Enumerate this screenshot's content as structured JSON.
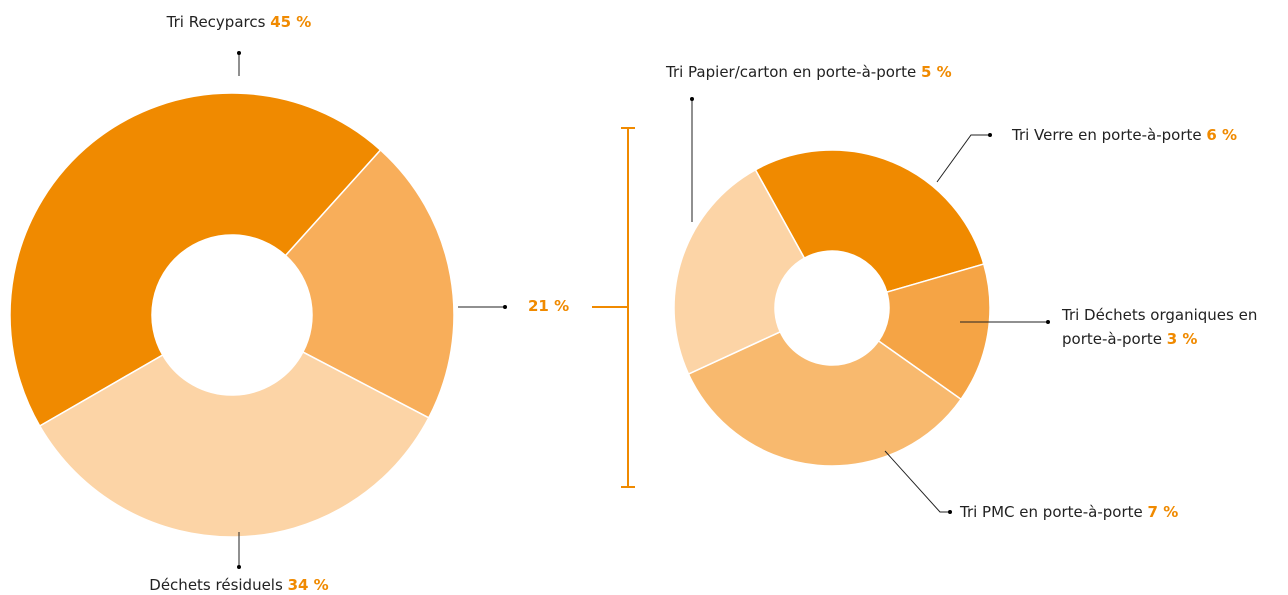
{
  "chart_data": [
    {
      "type": "donut",
      "categories": [
        "Tri Recyparcs",
        null,
        "Déchets résiduels"
      ],
      "values": [
        45,
        21,
        34
      ],
      "value_labels": [
        "45 %",
        "21 %",
        "34 %"
      ],
      "colors": [
        "#f08a00",
        "#f8ae5a",
        "#fcd4a6"
      ]
    },
    {
      "type": "donut",
      "categories": [
        "Tri Verre en porte-à-porte",
        "Tri Déchets organiques en porte-à-porte",
        "Tri PMC en porte-à-porte",
        "Tri Papier/carton en porte-à-porte"
      ],
      "values": [
        6,
        3,
        7,
        5
      ],
      "value_labels": [
        "6 %",
        "3 %",
        "7 %",
        "5 %"
      ],
      "colors": [
        "#f08a00",
        "#f5a445",
        "#f8b96e",
        "#fcd4a6"
      ]
    }
  ]
}
